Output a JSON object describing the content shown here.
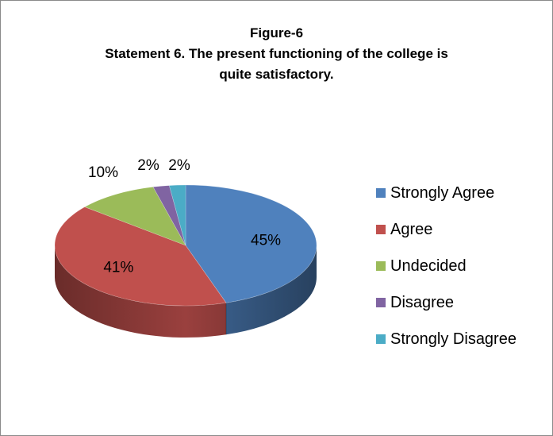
{
  "chart_data": {
    "type": "pie",
    "style": "3d",
    "title_lines": [
      "Figure-6",
      "Statement 6. The present functioning of the college is",
      "quite satisfactory."
    ],
    "categories": [
      "Strongly Agree",
      "Agree",
      "Undecided",
      "Disagree",
      "Strongly Disagree"
    ],
    "values": [
      45,
      41,
      10,
      2,
      2
    ],
    "data_labels": [
      "45%",
      "41%",
      "10%",
      "2%",
      "2%"
    ],
    "colors": [
      "#4f81bd",
      "#c0504d",
      "#9bbb59",
      "#8064a2",
      "#4bacc6"
    ],
    "legend_position": "right"
  }
}
